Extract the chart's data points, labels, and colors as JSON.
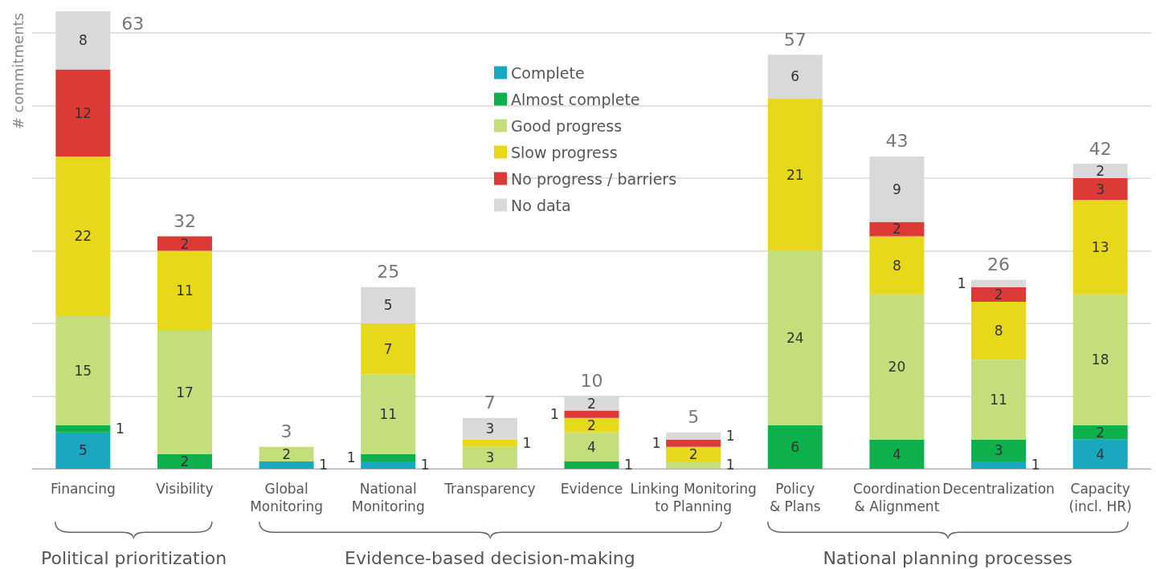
{
  "chart_data": {
    "type": "bar",
    "stacked": true,
    "ylabel": "# commitments",
    "categories": [
      "Financing",
      "Visibility",
      "Global\nMonitoring",
      "National\nMonitoring",
      "Transparency",
      "Evidence",
      "Linking Monitoring\nto Planning",
      "Policy\n& Plans",
      "Coordination\n& Alignment",
      "Decentralization",
      "Capacity\n(incl. HR)"
    ],
    "series": [
      {
        "name": "Complete",
        "color": "#1aa7c0",
        "values": [
          5,
          null,
          1,
          1,
          null,
          null,
          null,
          null,
          null,
          1,
          4
        ]
      },
      {
        "name": "Almost complete",
        "color": "#0db04b",
        "values": [
          1,
          2,
          null,
          1,
          null,
          1,
          null,
          6,
          4,
          3,
          2
        ]
      },
      {
        "name": "Good progress",
        "color": "#c3de7a",
        "values": [
          15,
          17,
          2,
          11,
          3,
          4,
          1,
          24,
          20,
          11,
          18
        ]
      },
      {
        "name": "Slow progress",
        "color": "#e8d81b",
        "values": [
          22,
          11,
          null,
          7,
          1,
          2,
          2,
          21,
          8,
          8,
          13
        ]
      },
      {
        "name": "No progress / barriers",
        "color": "#dc3a37",
        "values": [
          12,
          2,
          null,
          null,
          null,
          1,
          1,
          null,
          2,
          2,
          3
        ]
      },
      {
        "name": "No data",
        "color": "#d9d9d9",
        "values": [
          8,
          null,
          null,
          5,
          3,
          2,
          1,
          6,
          9,
          1,
          2
        ]
      }
    ],
    "totals": [
      "63",
      "32",
      "3",
      "25",
      "7",
      "10",
      "5",
      "57",
      "43",
      "26",
      "42"
    ],
    "data_labels": true,
    "ylim": [
      0,
      63
    ],
    "yticks": [
      {
        "value": 0,
        "label": null
      },
      {
        "value": 10,
        "label": null
      },
      {
        "value": 20,
        "label": null
      },
      {
        "value": 30,
        "label": null
      },
      {
        "value": 40,
        "label": null
      },
      {
        "value": 50,
        "label": null
      },
      {
        "value": 60,
        "label": null
      }
    ],
    "tick_labels": "x",
    "grid": "y",
    "legend": "top",
    "annotations": [
      "Political prioritization",
      "Evidence-based decision-making",
      "National planning processes"
    ]
  }
}
